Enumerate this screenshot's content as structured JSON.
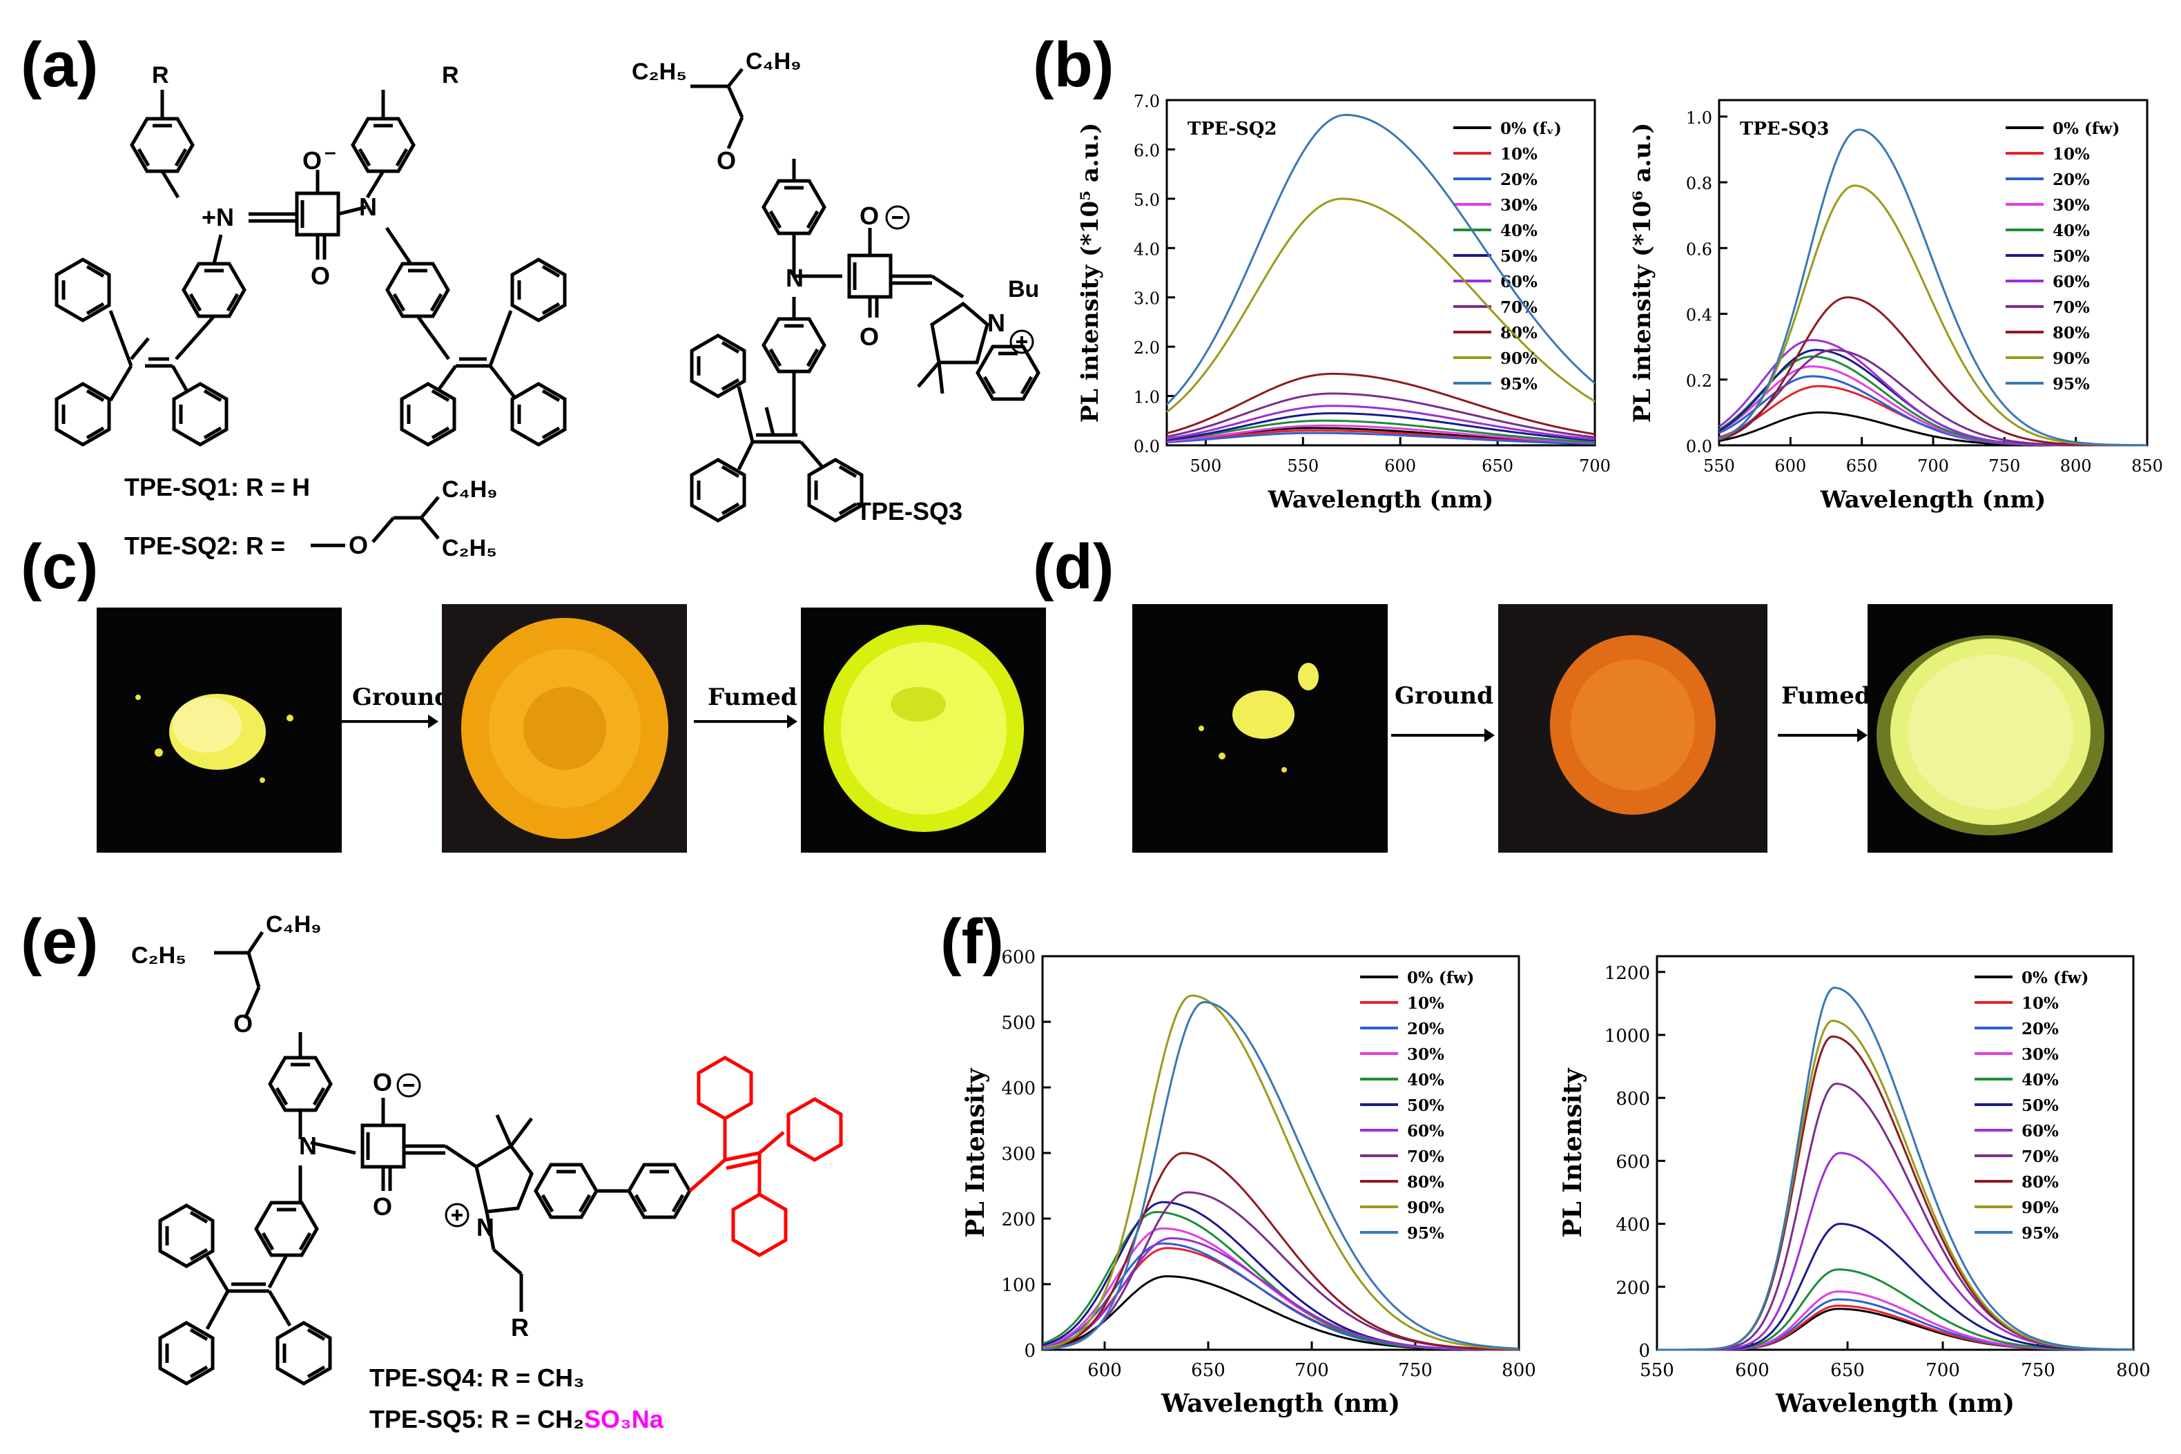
{
  "panels": {
    "a": "(a)",
    "b": "(b)",
    "c": "(c)",
    "d": "(d)",
    "e": "(e)",
    "f": "(f)"
  },
  "molecules": {
    "a": {
      "r1": "R",
      "r2": "R",
      "n_plus": "+N",
      "n": "N",
      "o_minus": "O",
      "o": "O",
      "caption1": "TPE-SQ1: R = H",
      "caption2_prefix": "TPE-SQ2: R =",
      "c4h9": "C₄H₉",
      "c2h5": "C₂H₅",
      "o_link": "O"
    },
    "sq3": {
      "c2h5": "C₂H₅",
      "c4h9": "C₄H₉",
      "o": "O",
      "n": "N",
      "o_minus": "O",
      "o2": "O",
      "bu": "Bu",
      "n_plus": "N",
      "caption": "TPE-SQ3"
    },
    "e": {
      "c2h5": "C₂H₅",
      "c4h9": "C₄H₉",
      "o": "O",
      "n": "N",
      "o_minus": "O",
      "o2": "O",
      "n_plus": "N",
      "r": "R",
      "caption1": "TPE-SQ4: R = CH₃",
      "caption2_prefix": "TPE-SQ5: R = CH₂",
      "caption2_suffix": "SO₃Na"
    }
  },
  "photos": {
    "c": {
      "step1": "Ground",
      "step2": "Fumed"
    },
    "d": {
      "step1": "Ground",
      "step2": "Fumed"
    }
  },
  "colors": {
    "c0": "#000000",
    "c10": "#e8212a",
    "c20": "#2d5fd4",
    "c30": "#e23ee3",
    "c40": "#1c8e38",
    "c50": "#1b1b8c",
    "c60": "#9b30d6",
    "c70": "#7a2f8a",
    "c80": "#8e1b22",
    "c90": "#9a9a1c",
    "c95": "#3a78b5",
    "highlight_red": "#ff0000",
    "highlight_magenta": "#ff00ff"
  },
  "chart_data": [
    {
      "id": "b1",
      "type": "line",
      "title": "TPE-SQ2",
      "xlabel": "Wavelength (nm)",
      "ylabel": "PL intensity (*10⁵ a.u.)",
      "xlim": [
        480,
        700
      ],
      "ylim": [
        0,
        7
      ],
      "xticks": [
        "500",
        "550",
        "600",
        "650",
        "700"
      ],
      "yticks": [
        "0.0",
        "1.0",
        "2.0",
        "3.0",
        "4.0",
        "5.0",
        "6.0",
        "7.0"
      ],
      "legend_title": "0% (fᵥ)",
      "series": [
        {
          "name": "0% (fᵥ)",
          "peak": 0.35,
          "center": 555
        },
        {
          "name": "10%",
          "peak": 0.3,
          "center": 555
        },
        {
          "name": "20%",
          "peak": 0.25,
          "center": 555
        },
        {
          "name": "30%",
          "peak": 0.4,
          "center": 560
        },
        {
          "name": "40%",
          "peak": 0.5,
          "center": 560
        },
        {
          "name": "50%",
          "peak": 0.65,
          "center": 565
        },
        {
          "name": "60%",
          "peak": 0.8,
          "center": 565
        },
        {
          "name": "70%",
          "peak": 1.05,
          "center": 565
        },
        {
          "name": "80%",
          "peak": 1.45,
          "center": 565
        },
        {
          "name": "90%",
          "peak": 5.0,
          "center": 570
        },
        {
          "name": "95%",
          "peak": 6.7,
          "center": 572
        }
      ]
    },
    {
      "id": "b2",
      "type": "line",
      "title": "TPE-SQ3",
      "xlabel": "Wavelength (nm)",
      "ylabel": "PL intensity (*10⁶ a.u.)",
      "xlim": [
        550,
        850
      ],
      "ylim": [
        0,
        1.05
      ],
      "xticks": [
        "550",
        "600",
        "650",
        "700",
        "750",
        "800",
        "850"
      ],
      "yticks": [
        "0.0",
        "0.2",
        "0.4",
        "0.6",
        "0.8",
        "1.0"
      ],
      "series": [
        {
          "name": "0% (fw)",
          "peak": 0.1,
          "center": 620
        },
        {
          "name": "10%",
          "peak": 0.18,
          "center": 620
        },
        {
          "name": "20%",
          "peak": 0.21,
          "center": 615
        },
        {
          "name": "30%",
          "peak": 0.24,
          "center": 615
        },
        {
          "name": "40%",
          "peak": 0.27,
          "center": 615
        },
        {
          "name": "50%",
          "peak": 0.29,
          "center": 618
        },
        {
          "name": "60%",
          "peak": 0.32,
          "center": 615
        },
        {
          "name": "70%",
          "peak": 0.29,
          "center": 630
        },
        {
          "name": "80%",
          "peak": 0.45,
          "center": 640
        },
        {
          "name": "90%",
          "peak": 0.79,
          "center": 645
        },
        {
          "name": "95%",
          "peak": 0.96,
          "center": 648
        }
      ]
    },
    {
      "id": "f1",
      "type": "line",
      "title": "",
      "xlabel": "Wavelength (nm)",
      "ylabel": "PL Intensity",
      "xlim": [
        570,
        800
      ],
      "ylim": [
        0,
        600
      ],
      "xticks": [
        "600",
        "650",
        "700",
        "750",
        "800"
      ],
      "yticks": [
        "0",
        "100",
        "200",
        "300",
        "400",
        "500",
        "600"
      ],
      "series": [
        {
          "name": "0% (fw)",
          "peak": 112,
          "center": 630
        },
        {
          "name": "10%",
          "peak": 155,
          "center": 630
        },
        {
          "name": "20%",
          "peak": 162,
          "center": 628
        },
        {
          "name": "30%",
          "peak": 185,
          "center": 628
        },
        {
          "name": "40%",
          "peak": 210,
          "center": 625
        },
        {
          "name": "50%",
          "peak": 225,
          "center": 628
        },
        {
          "name": "60%",
          "peak": 170,
          "center": 632
        },
        {
          "name": "70%",
          "peak": 240,
          "center": 640
        },
        {
          "name": "80%",
          "peak": 300,
          "center": 638
        },
        {
          "name": "90%",
          "peak": 540,
          "center": 642
        },
        {
          "name": "95%",
          "peak": 530,
          "center": 648
        }
      ]
    },
    {
      "id": "f2",
      "type": "line",
      "title": "",
      "xlabel": "Wavelength (nm)",
      "ylabel": "PL Intensity",
      "xlim": [
        550,
        800
      ],
      "ylim": [
        0,
        1250
      ],
      "xticks": [
        "550",
        "600",
        "650",
        "700",
        "750",
        "800"
      ],
      "yticks": [
        "0",
        "200",
        "400",
        "600",
        "800",
        "1000",
        "1200"
      ],
      "series": [
        {
          "name": "0% (fw)",
          "peak": 130,
          "center": 645
        },
        {
          "name": "10%",
          "peak": 140,
          "center": 645
        },
        {
          "name": "20%",
          "peak": 160,
          "center": 645
        },
        {
          "name": "30%",
          "peak": 185,
          "center": 645
        },
        {
          "name": "40%",
          "peak": 255,
          "center": 645
        },
        {
          "name": "50%",
          "peak": 400,
          "center": 646
        },
        {
          "name": "60%",
          "peak": 625,
          "center": 646
        },
        {
          "name": "70%",
          "peak": 845,
          "center": 644
        },
        {
          "name": "80%",
          "peak": 995,
          "center": 642
        },
        {
          "name": "90%",
          "peak": 1045,
          "center": 642
        },
        {
          "name": "95%",
          "peak": 1150,
          "center": 643
        }
      ]
    }
  ]
}
